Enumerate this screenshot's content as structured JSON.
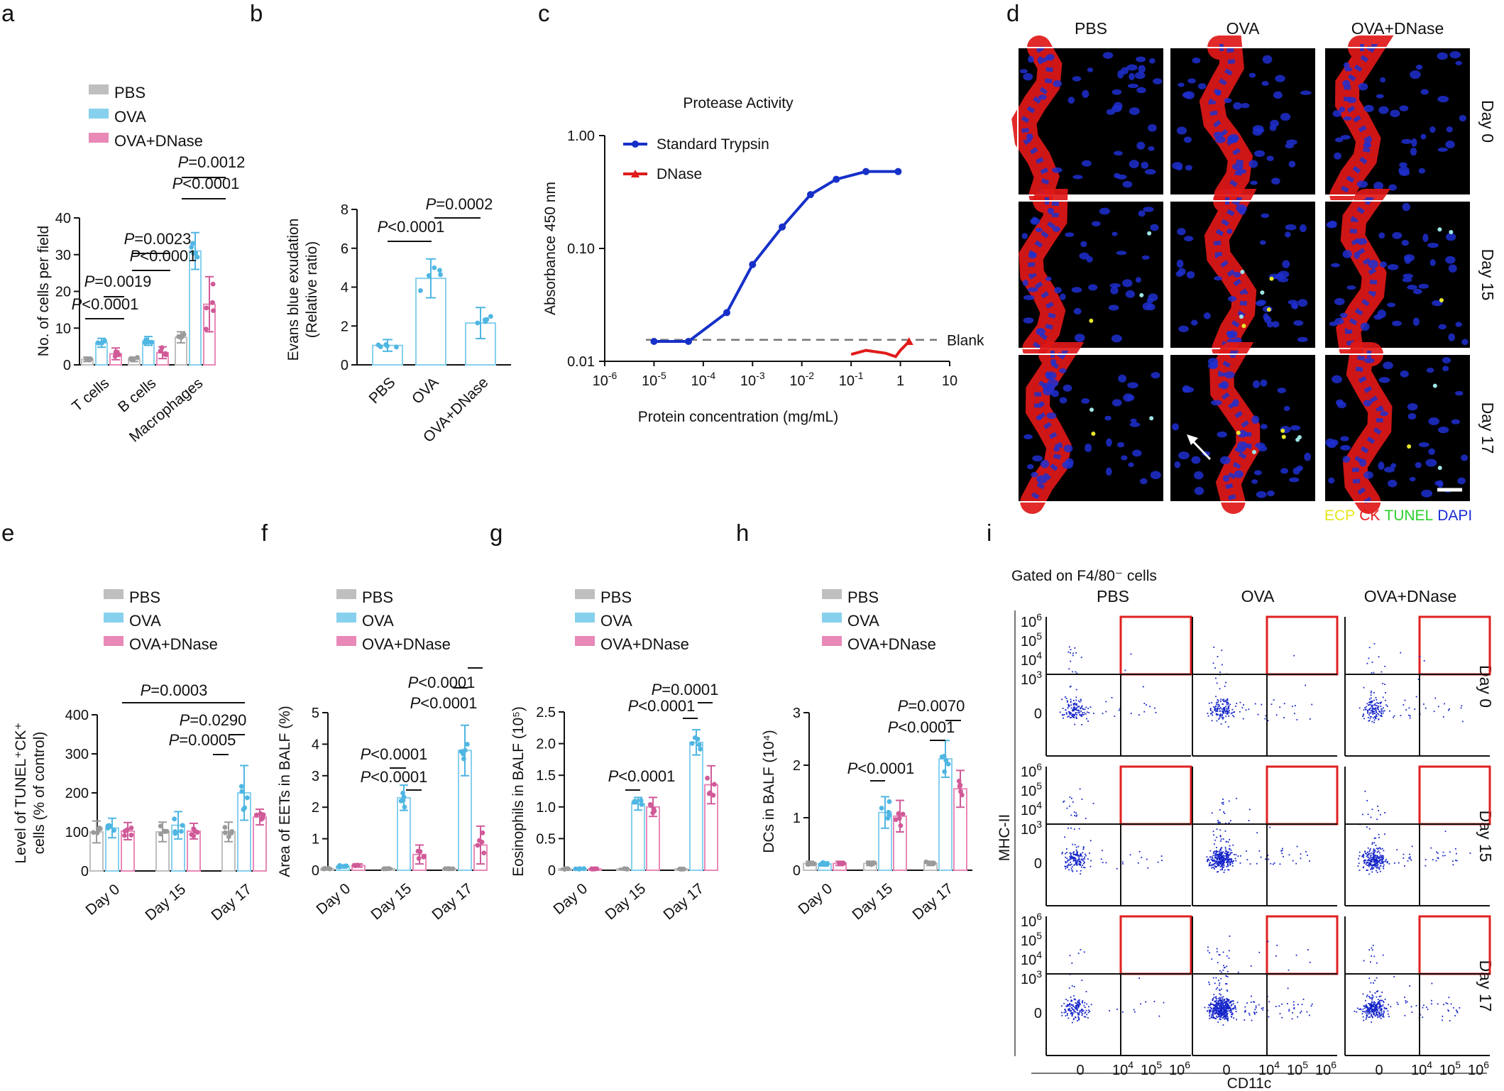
{
  "colors": {
    "PBS": "#bfbfbf",
    "OVA": "#87d0ee",
    "OVA+DNase": "#e889b8",
    "PBS_dot": "#9a9a9a",
    "OVA_dot": "#4fb6e2",
    "OVA+DNase_dot": "#d05a98",
    "trypsin": "#1630c8",
    "dnase": "#e01b1b",
    "gate": "#e02020"
  },
  "panel_letters": [
    "a",
    "b",
    "c",
    "d",
    "e",
    "f",
    "g",
    "h",
    "i"
  ],
  "legend": [
    "PBS",
    "OVA",
    "OVA+DNase"
  ],
  "chart_data": [
    {
      "id": "a",
      "type": "bar",
      "ylabel": "No. of cells per field",
      "ylim": [
        0,
        40
      ],
      "yticks": [
        0,
        10,
        20,
        30,
        40
      ],
      "categories": [
        "T cells",
        "B cells",
        "Macrophages"
      ],
      "series": [
        {
          "name": "PBS",
          "values": [
            1.5,
            1.5,
            7.5
          ],
          "err": [
            0.6,
            0.6,
            1.5
          ]
        },
        {
          "name": "OVA",
          "values": [
            6,
            6.5,
            31
          ],
          "err": [
            1.2,
            1.2,
            5
          ]
        },
        {
          "name": "OVA+DNase",
          "values": [
            3,
            3.3,
            16.5
          ],
          "err": [
            1.6,
            1.6,
            7.5
          ]
        }
      ],
      "annotations": [
        "P<0.0001",
        "P=0.0019",
        "P<0.0001",
        "P=0.0023",
        "P<0.0001",
        "P=0.0012"
      ]
    },
    {
      "id": "b",
      "type": "bar",
      "ylabel_lines": [
        "Evans blue exudation",
        "(Relative ratio)"
      ],
      "ylim": [
        0,
        8
      ],
      "yticks": [
        0,
        2,
        4,
        6,
        8
      ],
      "categories": [
        "PBS",
        "OVA",
        "OVA+DNase"
      ],
      "values": [
        1,
        4.45,
        2.15
      ],
      "err": [
        0.3,
        1.0,
        0.8
      ],
      "annotations": [
        "P<0.0001",
        "P=0.0002"
      ]
    },
    {
      "id": "c",
      "type": "line",
      "title": "Protease Activity",
      "xlabel": "Protein concentration (mg/mL)",
      "ylabel": "Absorbance 450 nm",
      "xscale": "log",
      "yscale": "log",
      "xlim": [
        1e-06,
        10
      ],
      "ylim": [
        0.01,
        1
      ],
      "xticks": [
        {
          "b": "10",
          "e": "-6"
        },
        {
          "b": "10",
          "e": "-5"
        },
        {
          "b": "10",
          "e": "-4"
        },
        {
          "b": "10",
          "e": "-3"
        },
        {
          "b": "10",
          "e": "-2"
        },
        {
          "b": "10",
          "e": "-1"
        },
        {
          "b": "1",
          "e": ""
        },
        {
          "b": "10",
          "e": ""
        }
      ],
      "yticks": [
        "1.00",
        "0.10",
        "0.01"
      ],
      "series": [
        {
          "name": "Standard Trypsin",
          "x": [
            1e-05,
            5e-05,
            0.0003,
            0.001,
            0.004,
            0.015,
            0.05,
            0.2,
            0.9
          ],
          "y": [
            0.015,
            0.015,
            0.027,
            0.072,
            0.155,
            0.3,
            0.41,
            0.48,
            0.48
          ]
        },
        {
          "name": "DNase",
          "x": [
            0.1,
            0.2,
            0.5,
            0.8,
            1.0,
            1.5
          ],
          "y": [
            0.0115,
            0.0125,
            0.0118,
            0.011,
            0.0125,
            0.015
          ]
        }
      ],
      "reference_line": {
        "label": "Blank",
        "y": 0.0155
      }
    },
    {
      "id": "e",
      "type": "bar",
      "ylabel_lines": [
        "Level of TUNEL⁺CK⁺",
        "cells (% of control)"
      ],
      "ylim": [
        0,
        400
      ],
      "yticks": [
        0,
        100,
        200,
        300,
        400
      ],
      "categories": [
        "Day 0",
        "Day 15",
        "Day 17"
      ],
      "series": [
        {
          "name": "PBS",
          "values": [
            100,
            100,
            100
          ],
          "err": [
            28,
            25,
            25
          ]
        },
        {
          "name": "OVA",
          "values": [
            110,
            117,
            200
          ],
          "err": [
            25,
            35,
            70
          ]
        },
        {
          "name": "OVA+DNase",
          "values": [
            102,
            102,
            138
          ],
          "err": [
            22,
            20,
            20
          ]
        }
      ],
      "annotations": [
        "P=0.0003",
        "P=0.0290",
        "P=0.0005"
      ]
    },
    {
      "id": "f",
      "type": "bar",
      "ylabel": "Area of EETs in BALF (%)",
      "ylim": [
        0,
        5
      ],
      "yticks": [
        0,
        1,
        2,
        3,
        4,
        5
      ],
      "categories": [
        "Day 0",
        "Day 15",
        "Day 17"
      ],
      "series": [
        {
          "name": "PBS",
          "values": [
            0.05,
            0.05,
            0.05
          ],
          "err": [
            0.02,
            0.02,
            0.02
          ]
        },
        {
          "name": "OVA",
          "values": [
            0.12,
            2.3,
            3.8
          ],
          "err": [
            0.05,
            0.4,
            0.8
          ]
        },
        {
          "name": "OVA+DNase",
          "values": [
            0.15,
            0.5,
            0.8
          ],
          "err": [
            0.05,
            0.3,
            0.6
          ]
        }
      ],
      "annotations": [
        "P<0.0001",
        "P<0.0001",
        "P<0.0001",
        "P<0.0001"
      ]
    },
    {
      "id": "g",
      "type": "bar",
      "ylabel": "Eosinophils in BALF (10⁵)",
      "ylim": [
        0,
        2.5
      ],
      "yticks": [
        "0",
        "0.5",
        "1.0",
        "1.5",
        "2.0",
        "2.5"
      ],
      "categories": [
        "Day 0",
        "Day 15",
        "Day 17"
      ],
      "series": [
        {
          "name": "PBS",
          "values": [
            0.02,
            0.02,
            0.02
          ],
          "err": [
            0.01,
            0.01,
            0.01
          ]
        },
        {
          "name": "OVA",
          "values": [
            0.02,
            1.05,
            2.02
          ],
          "err": [
            0.01,
            0.1,
            0.2
          ]
        },
        {
          "name": "OVA+DNase",
          "values": [
            0.02,
            1.0,
            1.35
          ],
          "err": [
            0.01,
            0.15,
            0.3
          ]
        }
      ],
      "annotations": [
        "P<0.0001",
        "P<0.0001",
        "P=0.0001"
      ]
    },
    {
      "id": "h",
      "type": "bar",
      "ylabel": "DCs in BALF (10⁴)",
      "ylim": [
        0,
        3
      ],
      "yticks": [
        0,
        1,
        2,
        3
      ],
      "categories": [
        "Day 0",
        "Day 15",
        "Day 17"
      ],
      "series": [
        {
          "name": "PBS",
          "values": [
            0.13,
            0.13,
            0.13
          ],
          "err": [
            0.04,
            0.04,
            0.04
          ]
        },
        {
          "name": "OVA",
          "values": [
            0.12,
            1.1,
            2.12
          ],
          "err": [
            0.04,
            0.3,
            0.35
          ]
        },
        {
          "name": "OVA+DNase",
          "values": [
            0.13,
            1.03,
            1.55
          ],
          "err": [
            0.04,
            0.3,
            0.35
          ]
        }
      ],
      "annotations": [
        "P<0.0001",
        "P<0.0001",
        "P=0.0070"
      ]
    }
  ],
  "panel_d": {
    "columns": [
      "PBS",
      "OVA",
      "OVA+DNase"
    ],
    "rows": [
      "Day 0",
      "Day 15",
      "Day 17"
    ],
    "stain_legend": [
      {
        "text": "ECP",
        "color": "#e6e619"
      },
      {
        "text": "CK",
        "color": "#e42020"
      },
      {
        "text": "TUNEL",
        "color": "#2ccf2c"
      },
      {
        "text": "DAPI",
        "color": "#1a2bd6"
      }
    ]
  },
  "panel_i": {
    "gate_title": "Gated on F4/80⁻ cells",
    "columns": [
      "PBS",
      "OVA",
      "OVA+DNase"
    ],
    "rows": [
      "Day 0",
      "Day 15",
      "Day 17"
    ],
    "ylabel": "MHC-II",
    "xlabel": "CD11c",
    "yticks": [
      {
        "b": "10",
        "e": "6"
      },
      {
        "b": "10",
        "e": "5"
      },
      {
        "b": "10",
        "e": "4"
      },
      {
        "b": "10",
        "e": "3"
      },
      {
        "b": "0",
        "e": ""
      }
    ],
    "xticks": [
      {
        "b": "0",
        "e": ""
      },
      {
        "b": "10",
        "e": "4"
      },
      {
        "b": "10",
        "e": "5"
      },
      {
        "b": "10",
        "e": "6"
      }
    ]
  }
}
